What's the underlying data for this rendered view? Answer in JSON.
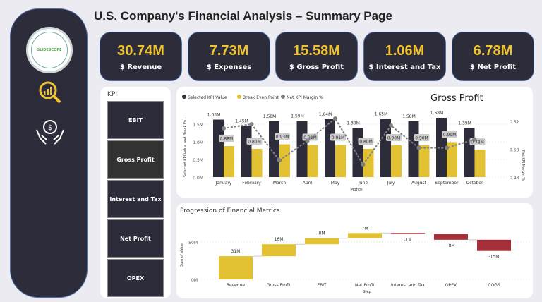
{
  "title": "U.S. Company's Financial Analysis – Summary Page",
  "sidebar": {
    "logo_text": "SLIDESCOPE",
    "icons": [
      "analytics-search-icon",
      "money-hands-icon"
    ]
  },
  "cards": [
    {
      "value": "30.74M",
      "label": "$ Revenue"
    },
    {
      "value": "7.73M",
      "label": "$ Expenses"
    },
    {
      "value": "15.58M",
      "label": "$ Gross Profit"
    },
    {
      "value": "1.06M",
      "label": "$ Interest and Tax"
    },
    {
      "value": "6.78M",
      "label": "$ Net Profit"
    }
  ],
  "kpi": {
    "title": "KPI",
    "options": [
      "EBIT",
      "Gross Profit",
      "Interest and Tax",
      "Net Profit",
      "OPEX"
    ],
    "selected": "Gross Profit"
  },
  "colors": {
    "dark": "#2d2c3a",
    "accent": "#e2c232",
    "negative": "#a4303a",
    "line": "#7f7f7f"
  },
  "chart_data": [
    {
      "type": "bar",
      "title": "Gross Profit",
      "legend": [
        "Selected KPI Value",
        "Break Even Point",
        "Net KPI Margin %"
      ],
      "legend_position": "top-left",
      "xlabel": "Month",
      "ylabel": "Selected KPI Value and Break Ev...",
      "y2label": "Net KPI Margin %",
      "categories": [
        "January",
        "February",
        "March",
        "April",
        "May",
        "June",
        "July",
        "August",
        "September",
        "October"
      ],
      "yticks": [
        "0.0M",
        "0.5M",
        "1.0M",
        "1.5M"
      ],
      "ylim": [
        0,
        1.8
      ],
      "y2ticks": [
        "0.48",
        "0.50",
        "0.52"
      ],
      "y2lim": [
        0.48,
        0.5267
      ],
      "series": [
        {
          "name": "Selected KPI Value",
          "values": [
            1.63,
            1.45,
            1.58,
            1.59,
            1.64,
            1.39,
            1.65,
            1.58,
            1.68,
            1.39
          ],
          "labels": [
            "1.63M",
            "1.45M",
            "1.58M",
            "1.59M",
            "1.64M",
            "1.39M",
            "1.65M",
            "1.58M",
            "1.68M",
            "1.39M"
          ]
        },
        {
          "name": "Break Even Point",
          "values": [
            0.88,
            0.8,
            0.93,
            0.91,
            0.91,
            0.8,
            0.9,
            0.9,
            0.99,
            0.78
          ],
          "labels": [
            "0.88M",
            "0.80M",
            "0.93M",
            "0.91M",
            "0.91M",
            "0.80M",
            "0.90M",
            "0.90M",
            "0.99M",
            "0.78M"
          ]
        },
        {
          "name": "Net KPI Margin %",
          "values": [
            0.515,
            0.518,
            0.492,
            0.506,
            0.522,
            0.489,
            0.517,
            0.501,
            0.501,
            0.507
          ]
        }
      ]
    },
    {
      "type": "waterfall",
      "title": "Progression of Financial Metrics",
      "xlabel": "Step",
      "ylabel": "Sum of Value",
      "yticks": [
        "0M",
        "50M"
      ],
      "categories": [
        "Revenue",
        "Gross Profit",
        "EBIT",
        "Net Profit",
        "Interest and Tax",
        "OPEX",
        "COGS"
      ],
      "values": [
        31,
        16,
        8,
        7,
        -1,
        -8,
        -15
      ],
      "labels": [
        "31M",
        "16M",
        "8M",
        "7M",
        "-1M",
        "-8M",
        "-15M"
      ]
    }
  ]
}
